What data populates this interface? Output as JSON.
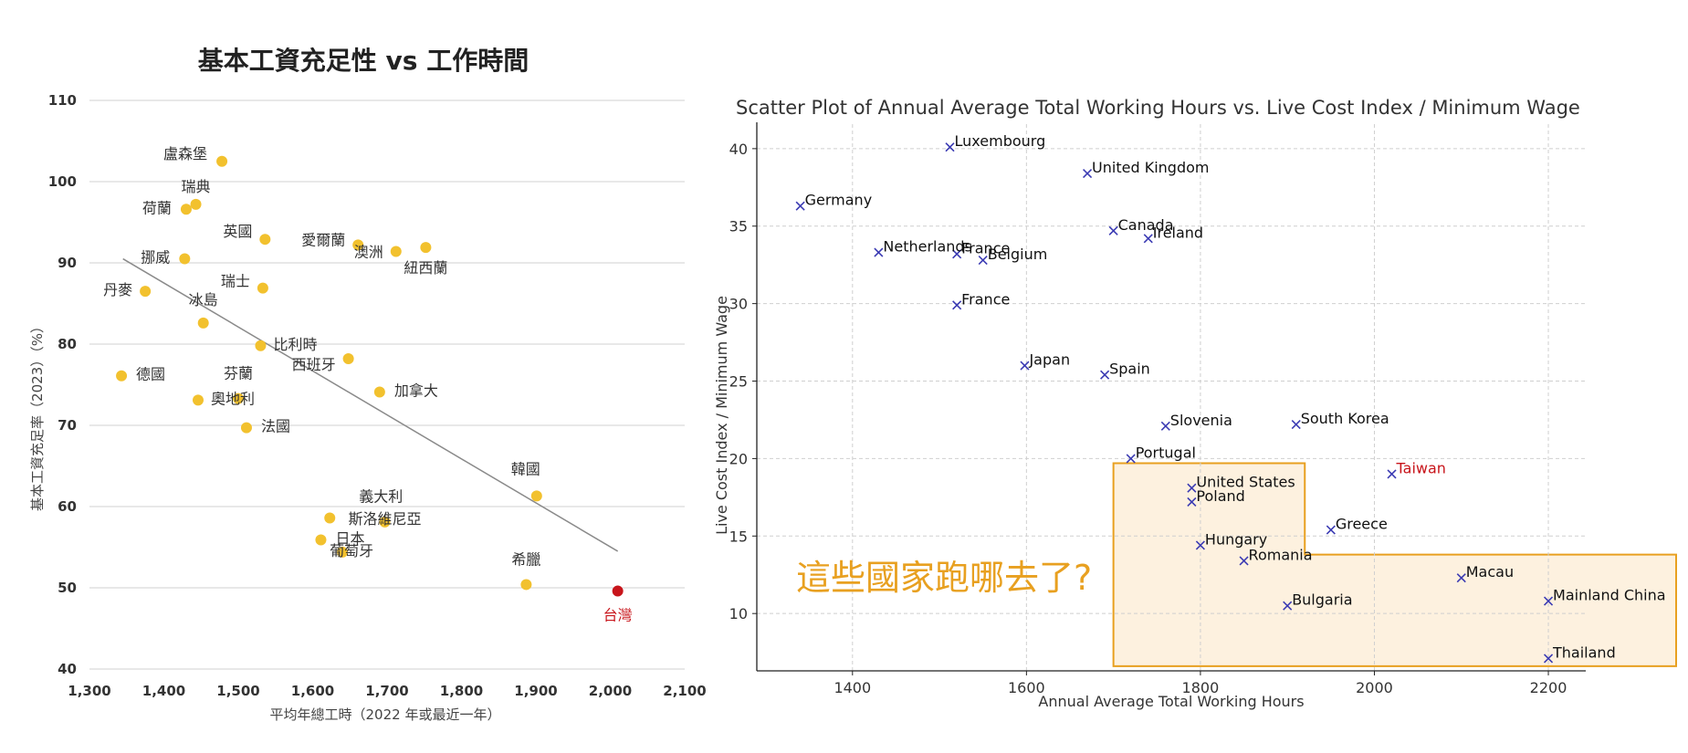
{
  "chart_data": [
    {
      "type": "scatter",
      "title": "基本工資充足性 vs 工作時間",
      "xlabel": "平均年總工時（2022 年或最近一年）",
      "ylabel": "基本工資充足率（2023）（%）",
      "xlim": [
        1300,
        2100
      ],
      "ylim": [
        40,
        110
      ],
      "xticks": [
        1300,
        1400,
        1500,
        1600,
        1700,
        1800,
        1900,
        2000,
        2100
      ],
      "xtick_labels": [
        "1,300",
        "1,400",
        "1,500",
        "1,600",
        "1,700",
        "1,800",
        "1,900",
        "2,000",
        "2,100"
      ],
      "yticks": [
        40,
        50,
        60,
        70,
        80,
        90,
        100,
        110
      ],
      "grid": "horizontal",
      "point_color": "#f2c12e",
      "highlight_color": "#c8151b",
      "trendline": {
        "x": [
          1345,
          2010
        ],
        "y": [
          90.5,
          54.5
        ]
      },
      "points": [
        {
          "label": "盧森堡",
          "x": 1478,
          "y": 102.5
        },
        {
          "label": "瑞典",
          "x": 1443,
          "y": 97.2
        },
        {
          "label": "荷蘭",
          "x": 1430,
          "y": 96.6
        },
        {
          "label": "英國",
          "x": 1536,
          "y": 92.9
        },
        {
          "label": "愛爾蘭",
          "x": 1661,
          "y": 92.2
        },
        {
          "label": "澳洲",
          "x": 1712,
          "y": 91.4
        },
        {
          "label": "紐西蘭",
          "x": 1752,
          "y": 91.9
        },
        {
          "label": "挪威",
          "x": 1428,
          "y": 90.5
        },
        {
          "label": "丹麥",
          "x": 1375,
          "y": 86.5
        },
        {
          "label": "瑞士",
          "x": 1533,
          "y": 86.9
        },
        {
          "label": "冰島",
          "x": 1453,
          "y": 82.6
        },
        {
          "label": "比利時",
          "x": 1530,
          "y": 79.8
        },
        {
          "label": "西班牙",
          "x": 1648,
          "y": 78.2
        },
        {
          "label": "德國",
          "x": 1343,
          "y": 76.1
        },
        {
          "label": "芬蘭",
          "x": 1500,
          "y": 73.3
        },
        {
          "label": "奧地利",
          "x": 1446,
          "y": 73.1
        },
        {
          "label": "加拿大",
          "x": 1690,
          "y": 74.1
        },
        {
          "label": "法國",
          "x": 1511,
          "y": 69.7
        },
        {
          "label": "韓國",
          "x": 1901,
          "y": 61.3
        },
        {
          "label": "義大利",
          "x": 1623,
          "y": 58.6
        },
        {
          "label": "斯洛維尼亞",
          "x": 1697,
          "y": 58.1
        },
        {
          "label": "日本",
          "x": 1611,
          "y": 55.9
        },
        {
          "label": "葡萄牙",
          "x": 1640,
          "y": 54.4
        },
        {
          "label": "希臘",
          "x": 1887,
          "y": 50.4
        },
        {
          "label": "台灣",
          "x": 2010,
          "y": 49.6,
          "highlight": true
        }
      ]
    },
    {
      "type": "scatter",
      "title": "Scatter Plot of Annual Average Total Working Hours vs. Live Cost Index / Minimum Wage",
      "xlabel": "Annual Average Total Working Hours",
      "ylabel": "Live Cost Index / Minimum Wage",
      "xlim": [
        1290,
        2243
      ],
      "ylim": [
        6.3,
        41.7
      ],
      "xticks": [
        1400,
        1600,
        1800,
        2000,
        2200
      ],
      "yticks": [
        10,
        15,
        20,
        25,
        30,
        35,
        40
      ],
      "grid": "dashed",
      "marker": "x",
      "marker_color": "#3b3bb3",
      "highlight_color": "#c8151b",
      "annotation": "這些國家跑哪去了?",
      "annotation_color": "#e8a020",
      "highlight_region_fill": "#fdf1df",
      "highlight_region_stroke": "#e8a020",
      "points": [
        {
          "label": "Luxembourg",
          "x": 1512,
          "y": 40.1
        },
        {
          "label": "United Kingdom",
          "x": 1670,
          "y": 38.4
        },
        {
          "label": "Germany",
          "x": 1340,
          "y": 36.3
        },
        {
          "label": "Canada",
          "x": 1700,
          "y": 34.7
        },
        {
          "label": "Ireland",
          "x": 1740,
          "y": 34.2
        },
        {
          "label": "Netherlands",
          "x": 1430,
          "y": 33.3
        },
        {
          "label": "France",
          "x": 1520,
          "y": 33.2
        },
        {
          "label": "Belgium",
          "x": 1550,
          "y": 32.8
        },
        {
          "label": "France",
          "x": 1520,
          "y": 29.9
        },
        {
          "label": "Japan",
          "x": 1598,
          "y": 26.0
        },
        {
          "label": "Spain",
          "x": 1690,
          "y": 25.4
        },
        {
          "label": "Slovenia",
          "x": 1760,
          "y": 22.1
        },
        {
          "label": "South Korea",
          "x": 1910,
          "y": 22.2
        },
        {
          "label": "Portugal",
          "x": 1720,
          "y": 20.0
        },
        {
          "label": "Taiwan",
          "x": 2020,
          "y": 19.0,
          "highlight": true
        },
        {
          "label": "United States",
          "x": 1790,
          "y": 18.1
        },
        {
          "label": "Poland",
          "x": 1790,
          "y": 17.2
        },
        {
          "label": "Greece",
          "x": 1950,
          "y": 15.4
        },
        {
          "label": "Hungary",
          "x": 1800,
          "y": 14.4
        },
        {
          "label": "Romania",
          "x": 1850,
          "y": 13.4
        },
        {
          "label": "Macau",
          "x": 2100,
          "y": 12.3
        },
        {
          "label": "Mainland China",
          "x": 2200,
          "y": 10.8
        },
        {
          "label": "Bulgaria",
          "x": 1900,
          "y": 10.5
        },
        {
          "label": "Thailand",
          "x": 2200,
          "y": 7.1
        }
      ]
    }
  ]
}
